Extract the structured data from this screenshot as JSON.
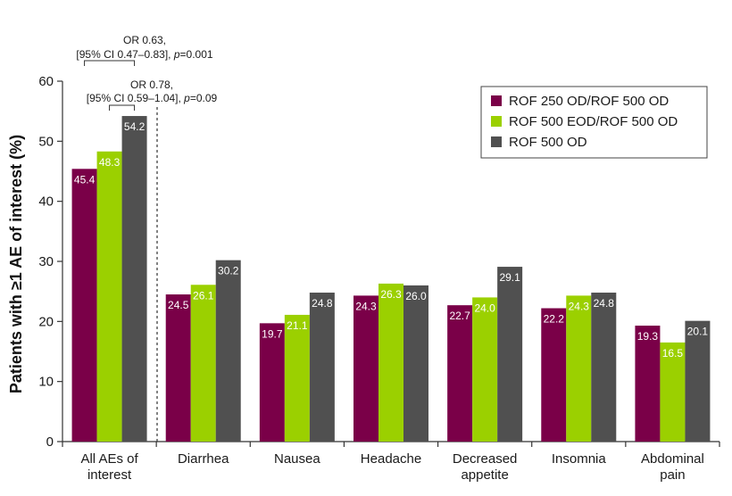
{
  "chart_data": {
    "type": "bar",
    "categories": [
      [
        "All AEs of",
        "interest"
      ],
      [
        "Diarrhea"
      ],
      [
        "Nausea"
      ],
      [
        "Headache"
      ],
      [
        "Decreased",
        "appetite"
      ],
      [
        "Insomnia"
      ],
      [
        "Abdominal",
        "pain"
      ]
    ],
    "series": [
      {
        "name": "ROF 250 OD/ROF 500 OD",
        "color": "#7a0048",
        "values": [
          45.4,
          24.5,
          19.7,
          24.3,
          22.7,
          22.2,
          19.3
        ]
      },
      {
        "name": "ROF 500 EOD/ROF 500 OD",
        "color": "#9bd000",
        "values": [
          48.3,
          26.1,
          21.1,
          26.3,
          24.0,
          24.3,
          16.5
        ]
      },
      {
        "name": "ROF 500 OD",
        "color": "#505050",
        "values": [
          54.2,
          30.2,
          24.8,
          26.0,
          29.1,
          24.8,
          20.1
        ]
      }
    ],
    "value_labels": [
      [
        "45.4",
        "24.5",
        "19.7",
        "24.3",
        "22.7",
        "22.2",
        "19.3"
      ],
      [
        "48.3",
        "26.1",
        "21.1",
        "26.3",
        "24.0",
        "24.3",
        "16.5"
      ],
      [
        "54.2",
        "30.2",
        "24.8",
        "26.0",
        "29.1",
        "24.8",
        "20.1"
      ]
    ],
    "ylabel": "Patients with ≥1 AE of interest (%)",
    "ylim": [
      0,
      60
    ],
    "yticks": [
      "0",
      "10",
      "20",
      "30",
      "40",
      "50",
      "60"
    ],
    "grid": false,
    "legend_position": "top-right",
    "annotations": [
      {
        "line1": "OR 0.63,",
        "line2_prefix": "[95% CI 0.47–0.83], ",
        "line2_italic": "p",
        "line2_suffix": "=0.001",
        "compares": [
          0,
          2
        ]
      },
      {
        "line1": "OR 0.78,",
        "line2_prefix": "[95% CI 0.59–1.04], ",
        "line2_italic": "p",
        "line2_suffix": "=0.09",
        "compares": [
          1,
          2
        ]
      }
    ]
  }
}
